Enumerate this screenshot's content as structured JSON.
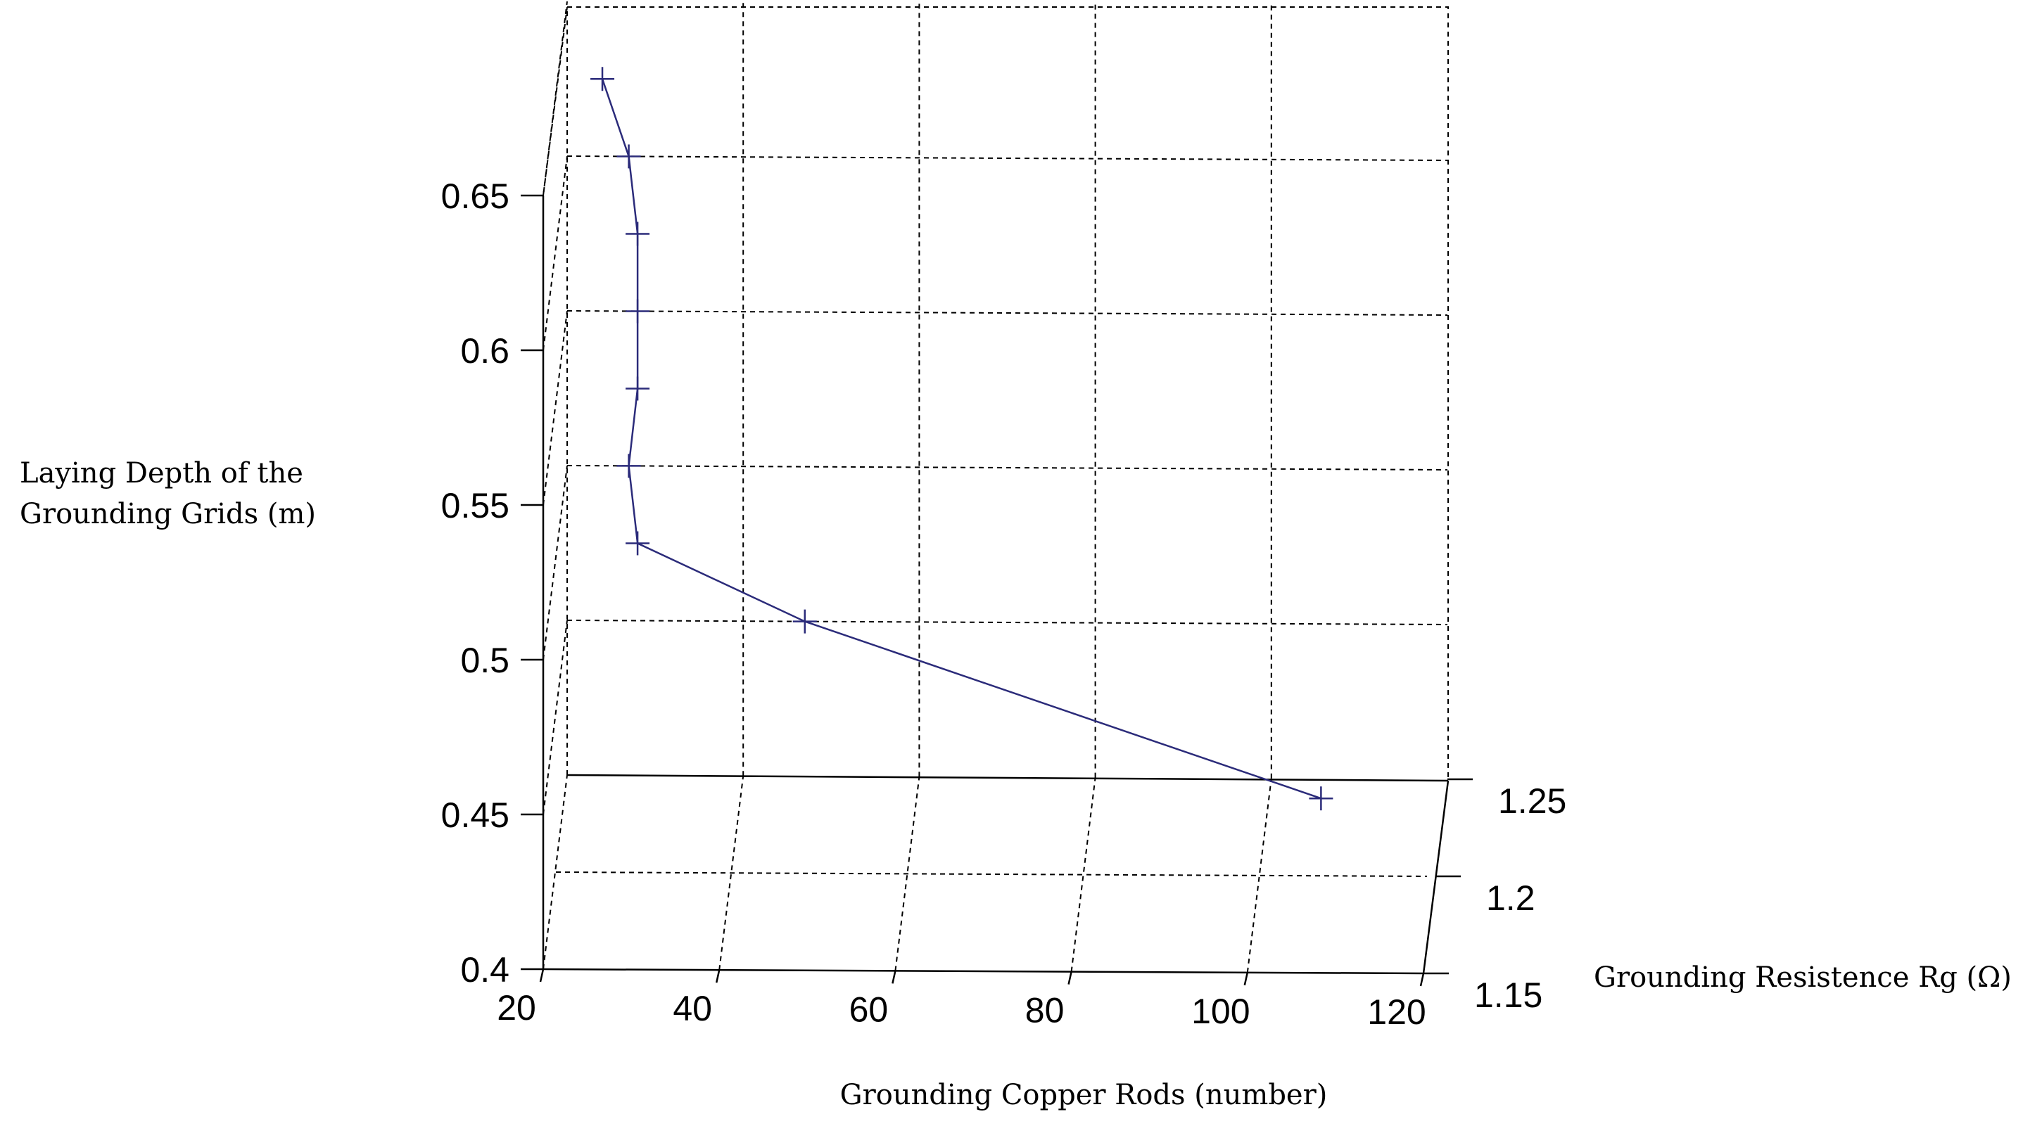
{
  "chart_data": {
    "type": "line",
    "projection": "3d",
    "title": "",
    "xlabel": "Grounding Copper Rods (number)",
    "ylabel": "Grounding Resistence Rg (Ω)",
    "zlabel_lines": [
      "Laying Depth of the",
      "Grounding Grids (m)"
    ],
    "x_ticks": [
      "20",
      "40",
      "60",
      "80",
      "100",
      "120"
    ],
    "y_ticks": [
      "1.15",
      "1.2",
      "1.25"
    ],
    "z_ticks": [
      "0.4",
      "0.45",
      "0.5",
      "0.55",
      "0.6",
      "0.65"
    ],
    "xlim": [
      20,
      120
    ],
    "ylim": [
      1.15,
      1.25
    ],
    "zlim": [
      0.4,
      0.65
    ],
    "grid": true,
    "marker": "plus",
    "colors": {
      "series": "#2b2b7a",
      "axes": "#000000"
    },
    "series": [
      {
        "points": [
          {
            "x": 24,
            "y": 1.25,
            "z": 0.625
          },
          {
            "x": 27,
            "y": 1.25,
            "z": 0.6
          },
          {
            "x": 28,
            "y": 1.25,
            "z": 0.575
          },
          {
            "x": 28,
            "y": 1.25,
            "z": 0.55
          },
          {
            "x": 28,
            "y": 1.25,
            "z": 0.525
          },
          {
            "x": 27,
            "y": 1.25,
            "z": 0.5
          },
          {
            "x": 28,
            "y": 1.25,
            "z": 0.475
          },
          {
            "x": 47,
            "y": 1.25,
            "z": 0.45
          },
          {
            "x": 107,
            "y": 1.2,
            "z": 0.425
          }
        ]
      }
    ]
  }
}
